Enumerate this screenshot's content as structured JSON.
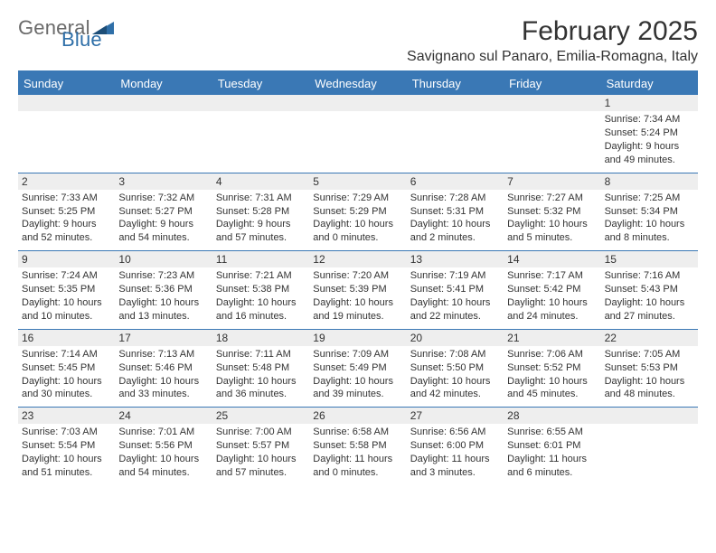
{
  "logo": {
    "text_general": "General",
    "text_blue": "Blue"
  },
  "title": "February 2025",
  "location": "Savignano sul Panaro, Emilia-Romagna, Italy",
  "colors": {
    "header_bar": "#3a78b5",
    "band_bg": "#eeeeee",
    "divider": "#3a78b5",
    "text": "#333333",
    "logo_gray": "#6a6a6a",
    "logo_blue": "#2f6fa8",
    "background": "#ffffff"
  },
  "weekdays": [
    "Sunday",
    "Monday",
    "Tuesday",
    "Wednesday",
    "Thursday",
    "Friday",
    "Saturday"
  ],
  "weeks": [
    [
      null,
      null,
      null,
      null,
      null,
      null,
      {
        "n": "1",
        "sunrise": "7:34 AM",
        "sunset": "5:24 PM",
        "daylight": "9 hours and 49 minutes."
      }
    ],
    [
      {
        "n": "2",
        "sunrise": "7:33 AM",
        "sunset": "5:25 PM",
        "daylight": "9 hours and 52 minutes."
      },
      {
        "n": "3",
        "sunrise": "7:32 AM",
        "sunset": "5:27 PM",
        "daylight": "9 hours and 54 minutes."
      },
      {
        "n": "4",
        "sunrise": "7:31 AM",
        "sunset": "5:28 PM",
        "daylight": "9 hours and 57 minutes."
      },
      {
        "n": "5",
        "sunrise": "7:29 AM",
        "sunset": "5:29 PM",
        "daylight": "10 hours and 0 minutes."
      },
      {
        "n": "6",
        "sunrise": "7:28 AM",
        "sunset": "5:31 PM",
        "daylight": "10 hours and 2 minutes."
      },
      {
        "n": "7",
        "sunrise": "7:27 AM",
        "sunset": "5:32 PM",
        "daylight": "10 hours and 5 minutes."
      },
      {
        "n": "8",
        "sunrise": "7:25 AM",
        "sunset": "5:34 PM",
        "daylight": "10 hours and 8 minutes."
      }
    ],
    [
      {
        "n": "9",
        "sunrise": "7:24 AM",
        "sunset": "5:35 PM",
        "daylight": "10 hours and 10 minutes."
      },
      {
        "n": "10",
        "sunrise": "7:23 AM",
        "sunset": "5:36 PM",
        "daylight": "10 hours and 13 minutes."
      },
      {
        "n": "11",
        "sunrise": "7:21 AM",
        "sunset": "5:38 PM",
        "daylight": "10 hours and 16 minutes."
      },
      {
        "n": "12",
        "sunrise": "7:20 AM",
        "sunset": "5:39 PM",
        "daylight": "10 hours and 19 minutes."
      },
      {
        "n": "13",
        "sunrise": "7:19 AM",
        "sunset": "5:41 PM",
        "daylight": "10 hours and 22 minutes."
      },
      {
        "n": "14",
        "sunrise": "7:17 AM",
        "sunset": "5:42 PM",
        "daylight": "10 hours and 24 minutes."
      },
      {
        "n": "15",
        "sunrise": "7:16 AM",
        "sunset": "5:43 PM",
        "daylight": "10 hours and 27 minutes."
      }
    ],
    [
      {
        "n": "16",
        "sunrise": "7:14 AM",
        "sunset": "5:45 PM",
        "daylight": "10 hours and 30 minutes."
      },
      {
        "n": "17",
        "sunrise": "7:13 AM",
        "sunset": "5:46 PM",
        "daylight": "10 hours and 33 minutes."
      },
      {
        "n": "18",
        "sunrise": "7:11 AM",
        "sunset": "5:48 PM",
        "daylight": "10 hours and 36 minutes."
      },
      {
        "n": "19",
        "sunrise": "7:09 AM",
        "sunset": "5:49 PM",
        "daylight": "10 hours and 39 minutes."
      },
      {
        "n": "20",
        "sunrise": "7:08 AM",
        "sunset": "5:50 PM",
        "daylight": "10 hours and 42 minutes."
      },
      {
        "n": "21",
        "sunrise": "7:06 AM",
        "sunset": "5:52 PM",
        "daylight": "10 hours and 45 minutes."
      },
      {
        "n": "22",
        "sunrise": "7:05 AM",
        "sunset": "5:53 PM",
        "daylight": "10 hours and 48 minutes."
      }
    ],
    [
      {
        "n": "23",
        "sunrise": "7:03 AM",
        "sunset": "5:54 PM",
        "daylight": "10 hours and 51 minutes."
      },
      {
        "n": "24",
        "sunrise": "7:01 AM",
        "sunset": "5:56 PM",
        "daylight": "10 hours and 54 minutes."
      },
      {
        "n": "25",
        "sunrise": "7:00 AM",
        "sunset": "5:57 PM",
        "daylight": "10 hours and 57 minutes."
      },
      {
        "n": "26",
        "sunrise": "6:58 AM",
        "sunset": "5:58 PM",
        "daylight": "11 hours and 0 minutes."
      },
      {
        "n": "27",
        "sunrise": "6:56 AM",
        "sunset": "6:00 PM",
        "daylight": "11 hours and 3 minutes."
      },
      {
        "n": "28",
        "sunrise": "6:55 AM",
        "sunset": "6:01 PM",
        "daylight": "11 hours and 6 minutes."
      },
      null
    ]
  ],
  "labels": {
    "sunrise_prefix": "Sunrise: ",
    "sunset_prefix": "Sunset: ",
    "daylight_prefix": "Daylight: "
  }
}
